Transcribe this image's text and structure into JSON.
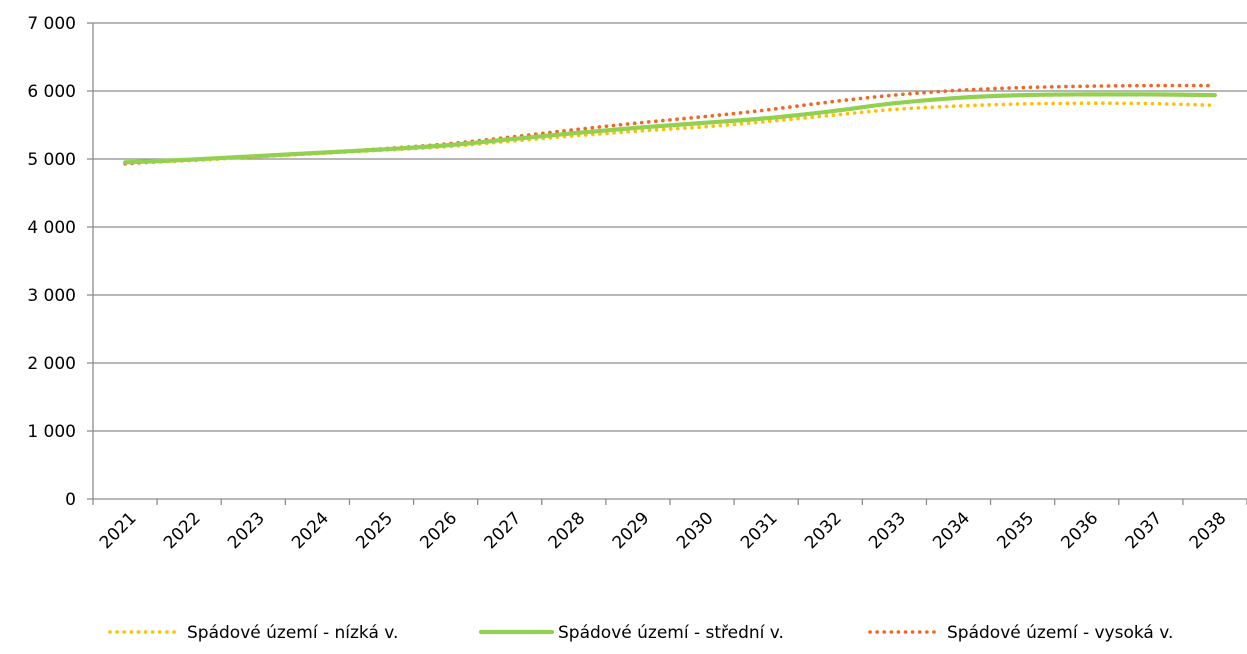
{
  "chart_data": {
    "type": "line",
    "title": "",
    "xlabel": "",
    "ylabel": "",
    "x": [
      "2021",
      "2022",
      "2023",
      "2024",
      "2025",
      "2026",
      "2027",
      "2028",
      "2029",
      "2030",
      "2031",
      "2032",
      "2033",
      "2034",
      "2035",
      "2036",
      "2037",
      "2038"
    ],
    "ylim": [
      0,
      7000
    ],
    "yticks": [
      0,
      1000,
      2000,
      3000,
      4000,
      5000,
      6000,
      7000
    ],
    "ytick_labels": [
      "0",
      "1 000",
      "2 000",
      "3 000",
      "4 000",
      "5 000",
      "6 000",
      "7 000"
    ],
    "grid": true,
    "legend_position": "bottom",
    "series": [
      {
        "name": "Spádové území - nízká v.",
        "color": "#ffc000",
        "style": "dotted",
        "values": [
          4940,
          4975,
          5030,
          5080,
          5130,
          5180,
          5260,
          5340,
          5410,
          5470,
          5550,
          5640,
          5730,
          5780,
          5810,
          5820,
          5815,
          5790
        ]
      },
      {
        "name": "Spádové území - střední v.",
        "color": "#92d050",
        "style": "solid",
        "values": [
          4950,
          4990,
          5040,
          5090,
          5140,
          5200,
          5290,
          5380,
          5460,
          5530,
          5600,
          5700,
          5820,
          5900,
          5940,
          5950,
          5950,
          5940
        ]
      },
      {
        "name": "Spádové území - vysoká v.",
        "color": "#f26522",
        "style": "dotted",
        "values": [
          4930,
          4990,
          5040,
          5090,
          5150,
          5220,
          5320,
          5430,
          5530,
          5620,
          5720,
          5840,
          5940,
          6010,
          6050,
          6070,
          6080,
          6080
        ]
      }
    ]
  }
}
